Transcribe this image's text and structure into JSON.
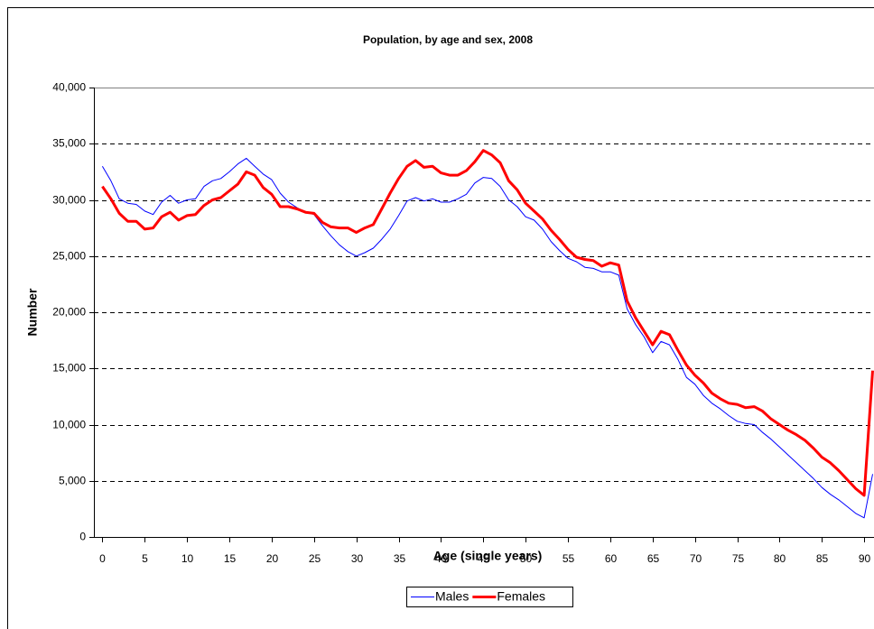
{
  "chart_data": {
    "type": "line",
    "title": "Population, by age and sex, 2008",
    "x_label": "Age (single years)",
    "y_label": "Number",
    "x": [
      0,
      1,
      2,
      3,
      4,
      5,
      6,
      7,
      8,
      9,
      10,
      11,
      12,
      13,
      14,
      15,
      16,
      17,
      18,
      19,
      20,
      21,
      22,
      23,
      24,
      25,
      26,
      27,
      28,
      29,
      30,
      31,
      32,
      33,
      34,
      35,
      36,
      37,
      38,
      39,
      40,
      41,
      42,
      43,
      44,
      45,
      46,
      47,
      48,
      49,
      50,
      51,
      52,
      53,
      54,
      55,
      56,
      57,
      58,
      59,
      60,
      61,
      62,
      63,
      64,
      65,
      66,
      67,
      68,
      69,
      70,
      71,
      72,
      73,
      74,
      75,
      76,
      77,
      78,
      79,
      80,
      81,
      82,
      83,
      84,
      85,
      86,
      87,
      88,
      89,
      90,
      91
    ],
    "series": [
      {
        "name": "Males",
        "color": "#0000ff",
        "width": 1,
        "values": [
          33000,
          31700,
          30100,
          29700,
          29600,
          29000,
          28700,
          29800,
          30400,
          29700,
          30000,
          30100,
          31200,
          31700,
          31900,
          32500,
          33200,
          33700,
          33000,
          32300,
          31800,
          30600,
          29800,
          29300,
          28900,
          28700,
          27700,
          26800,
          26000,
          25400,
          25000,
          25300,
          25700,
          26500,
          27400,
          28600,
          29900,
          30200,
          29900,
          30100,
          29800,
          29800,
          30100,
          30500,
          31500,
          32000,
          31900,
          31200,
          30000,
          29400,
          28500,
          28200,
          27400,
          26300,
          25500,
          24800,
          24500,
          24000,
          23900,
          23600,
          23600,
          23300,
          20300,
          18900,
          17800,
          16400,
          17400,
          17100,
          15800,
          14200,
          13600,
          12600,
          11900,
          11400,
          10800,
          10300,
          10100,
          10000,
          9300,
          8700,
          8000,
          7300,
          6600,
          5900,
          5200,
          4400,
          3800,
          3300,
          2700,
          2100,
          1700,
          5600
        ]
      },
      {
        "name": "Females",
        "color": "#ff0000",
        "width": 3,
        "values": [
          31200,
          30100,
          28800,
          28100,
          28100,
          27400,
          27500,
          28500,
          28900,
          28200,
          28600,
          28700,
          29500,
          30000,
          30200,
          30800,
          31400,
          32500,
          32200,
          31100,
          30500,
          29400,
          29400,
          29200,
          28900,
          28800,
          28000,
          27600,
          27500,
          27500,
          27100,
          27500,
          27800,
          29200,
          30600,
          31900,
          33000,
          33500,
          32900,
          33000,
          32400,
          32200,
          32200,
          32600,
          33400,
          34400,
          34000,
          33300,
          31700,
          30900,
          29700,
          29000,
          28300,
          27300,
          26500,
          25600,
          24900,
          24700,
          24600,
          24100,
          24400,
          24200,
          21000,
          19500,
          18300,
          17100,
          18300,
          18000,
          16600,
          15300,
          14400,
          13700,
          12800,
          12300,
          11900,
          11800,
          11500,
          11600,
          11200,
          10500,
          10000,
          9500,
          9100,
          8600,
          7900,
          7100,
          6600,
          5900,
          5100,
          4300,
          3700,
          14800
        ]
      }
    ],
    "xlim": [
      -1,
      91
    ],
    "xticks": [
      0,
      5,
      10,
      15,
      20,
      25,
      30,
      35,
      40,
      45,
      50,
      55,
      60,
      65,
      70,
      75,
      80,
      85,
      90
    ],
    "ylim": [
      0,
      40000
    ],
    "yticks": [
      0,
      {
        "value": 5000,
        "label": "5,000"
      },
      {
        "value": 10000,
        "label": "10,000"
      },
      {
        "value": 15000,
        "label": "15,000"
      },
      {
        "value": 20000,
        "label": "20,000"
      },
      {
        "value": 25000,
        "label": "25,000"
      },
      {
        "value": 30000,
        "label": "30,000"
      },
      {
        "value": 35000,
        "label": "35,000"
      },
      {
        "value": 40000,
        "label": "40,000"
      }
    ],
    "grid": true,
    "legend": "bottom"
  }
}
